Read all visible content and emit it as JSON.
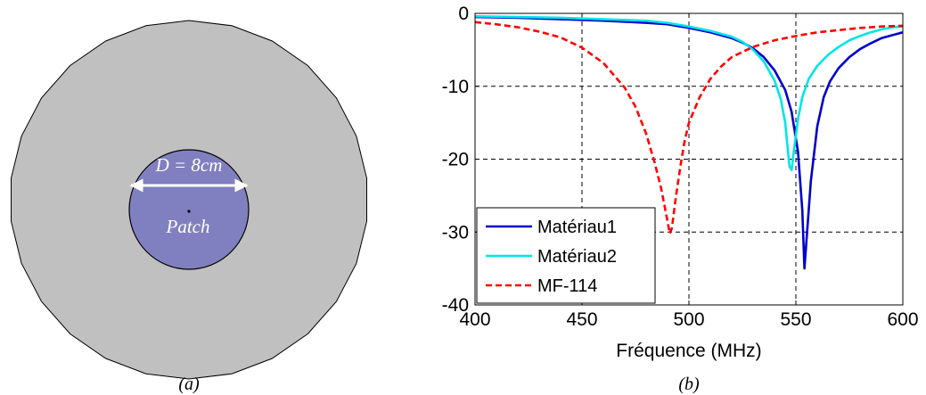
{
  "figure_a": {
    "dimension_label": "D = 8cm",
    "patch_label": "Patch",
    "caption": "(a)",
    "colors": {
      "substrate": "#c0c0c0",
      "patch": "#8080c0",
      "arrow": "#ffffff"
    }
  },
  "figure_b": {
    "caption": "(b)"
  },
  "chart_data": {
    "type": "line",
    "xlabel": "Fréquence (MHz)",
    "ylabel": "",
    "xlim": [
      400,
      600
    ],
    "ylim": [
      -40,
      0
    ],
    "xticks": [
      "400",
      "450",
      "500",
      "550",
      "600"
    ],
    "yticks": [
      "0",
      "-10",
      "-20",
      "-30",
      "-40"
    ],
    "grid": true,
    "legend_position": "bottom-left",
    "series": [
      {
        "name": "Matériau1",
        "color": "#0000cc",
        "style": "solid",
        "points": [
          [
            400,
            -0.5
          ],
          [
            420,
            -0.6
          ],
          [
            440,
            -0.8
          ],
          [
            460,
            -1.0
          ],
          [
            480,
            -1.3
          ],
          [
            490,
            -1.5
          ],
          [
            500,
            -2.0
          ],
          [
            510,
            -2.6
          ],
          [
            520,
            -3.4
          ],
          [
            525,
            -4.0
          ],
          [
            530,
            -4.8
          ],
          [
            535,
            -6.0
          ],
          [
            540,
            -7.8
          ],
          [
            545,
            -10.5
          ],
          [
            548,
            -13.5
          ],
          [
            551,
            -19
          ],
          [
            553,
            -27
          ],
          [
            554,
            -35
          ],
          [
            555,
            -31
          ],
          [
            557,
            -23
          ],
          [
            560,
            -15.5
          ],
          [
            563,
            -11.5
          ],
          [
            566,
            -9.3
          ],
          [
            570,
            -7.5
          ],
          [
            575,
            -6.0
          ],
          [
            580,
            -4.9
          ],
          [
            585,
            -4.1
          ],
          [
            590,
            -3.4
          ],
          [
            595,
            -3.0
          ],
          [
            600,
            -2.6
          ]
        ]
      },
      {
        "name": "Matériau2",
        "color": "#00e5e5",
        "style": "solid",
        "points": [
          [
            400,
            -0.4
          ],
          [
            420,
            -0.5
          ],
          [
            440,
            -0.6
          ],
          [
            460,
            -0.8
          ],
          [
            480,
            -1.0
          ],
          [
            490,
            -1.3
          ],
          [
            500,
            -1.8
          ],
          [
            510,
            -2.4
          ],
          [
            520,
            -3.2
          ],
          [
            525,
            -3.9
          ],
          [
            530,
            -5.0
          ],
          [
            535,
            -6.6
          ],
          [
            540,
            -9.2
          ],
          [
            543,
            -11.8
          ],
          [
            545,
            -15
          ],
          [
            547,
            -21
          ],
          [
            548,
            -21.5
          ],
          [
            549,
            -19
          ],
          [
            551,
            -14.5
          ],
          [
            553,
            -11.5
          ],
          [
            556,
            -9.0
          ],
          [
            560,
            -7.2
          ],
          [
            565,
            -5.7
          ],
          [
            570,
            -4.6
          ],
          [
            575,
            -3.7
          ],
          [
            580,
            -3.1
          ],
          [
            585,
            -2.6
          ],
          [
            590,
            -2.2
          ],
          [
            595,
            -1.9
          ],
          [
            600,
            -1.8
          ]
        ]
      },
      {
        "name": "MF-114",
        "color": "#ff0000",
        "style": "dashed",
        "points": [
          [
            400,
            -1.2
          ],
          [
            410,
            -1.5
          ],
          [
            420,
            -1.9
          ],
          [
            430,
            -2.5
          ],
          [
            440,
            -3.3
          ],
          [
            450,
            -4.7
          ],
          [
            460,
            -6.8
          ],
          [
            470,
            -10.2
          ],
          [
            475,
            -12.8
          ],
          [
            480,
            -16.5
          ],
          [
            484,
            -20.5
          ],
          [
            487,
            -24
          ],
          [
            489,
            -27
          ],
          [
            490,
            -28.5
          ],
          [
            491,
            -30.2
          ],
          [
            492,
            -29.5
          ],
          [
            494,
            -25
          ],
          [
            496,
            -21
          ],
          [
            498,
            -17.5
          ],
          [
            500,
            -15
          ],
          [
            505,
            -11.5
          ],
          [
            510,
            -9.0
          ],
          [
            515,
            -7.3
          ],
          [
            520,
            -6.0
          ],
          [
            530,
            -4.6
          ],
          [
            540,
            -3.7
          ],
          [
            550,
            -3.1
          ],
          [
            560,
            -2.6
          ],
          [
            570,
            -2.3
          ],
          [
            580,
            -2.0
          ],
          [
            590,
            -1.8
          ],
          [
            600,
            -1.7
          ]
        ]
      }
    ]
  }
}
